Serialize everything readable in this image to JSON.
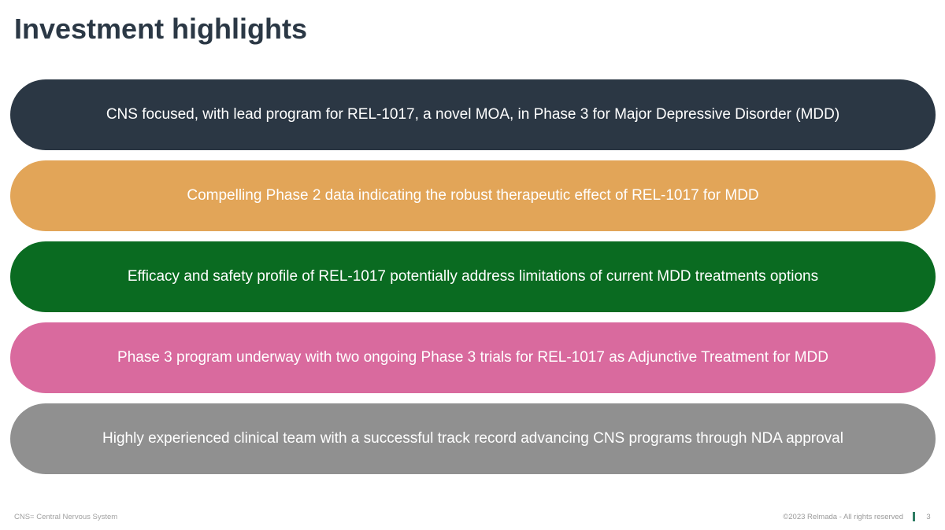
{
  "slide": {
    "title": "Investment highlights",
    "title_color": "#2b3845",
    "highlights": [
      {
        "text": "CNS focused, with lead program for REL-1017, a novel MOA, in Phase 3 for Major Depressive Disorder (MDD)",
        "color": "#2b3744"
      },
      {
        "text": "Compelling Phase 2 data indicating the robust therapeutic effect of REL-1017 for MDD",
        "color": "#e2a558"
      },
      {
        "text": "Efficacy and safety profile of REL-1017 potentially address limitations of current MDD treatments options",
        "color": "#0a6b21"
      },
      {
        "text": "Phase 3 program underway with two ongoing Phase 3 trials for REL-1017 as Adjunctive Treatment for MDD",
        "color": "#d96a9e"
      },
      {
        "text": "Highly experienced clinical team with a successful track record advancing CNS programs through NDA approval",
        "color": "#909090"
      }
    ],
    "footer": {
      "abbreviation_note": "CNS= Central Nervous System",
      "copyright": "©2023 Relmada - All rights reserved",
      "page_number": "3",
      "divider_color": "#2e7d64"
    }
  }
}
